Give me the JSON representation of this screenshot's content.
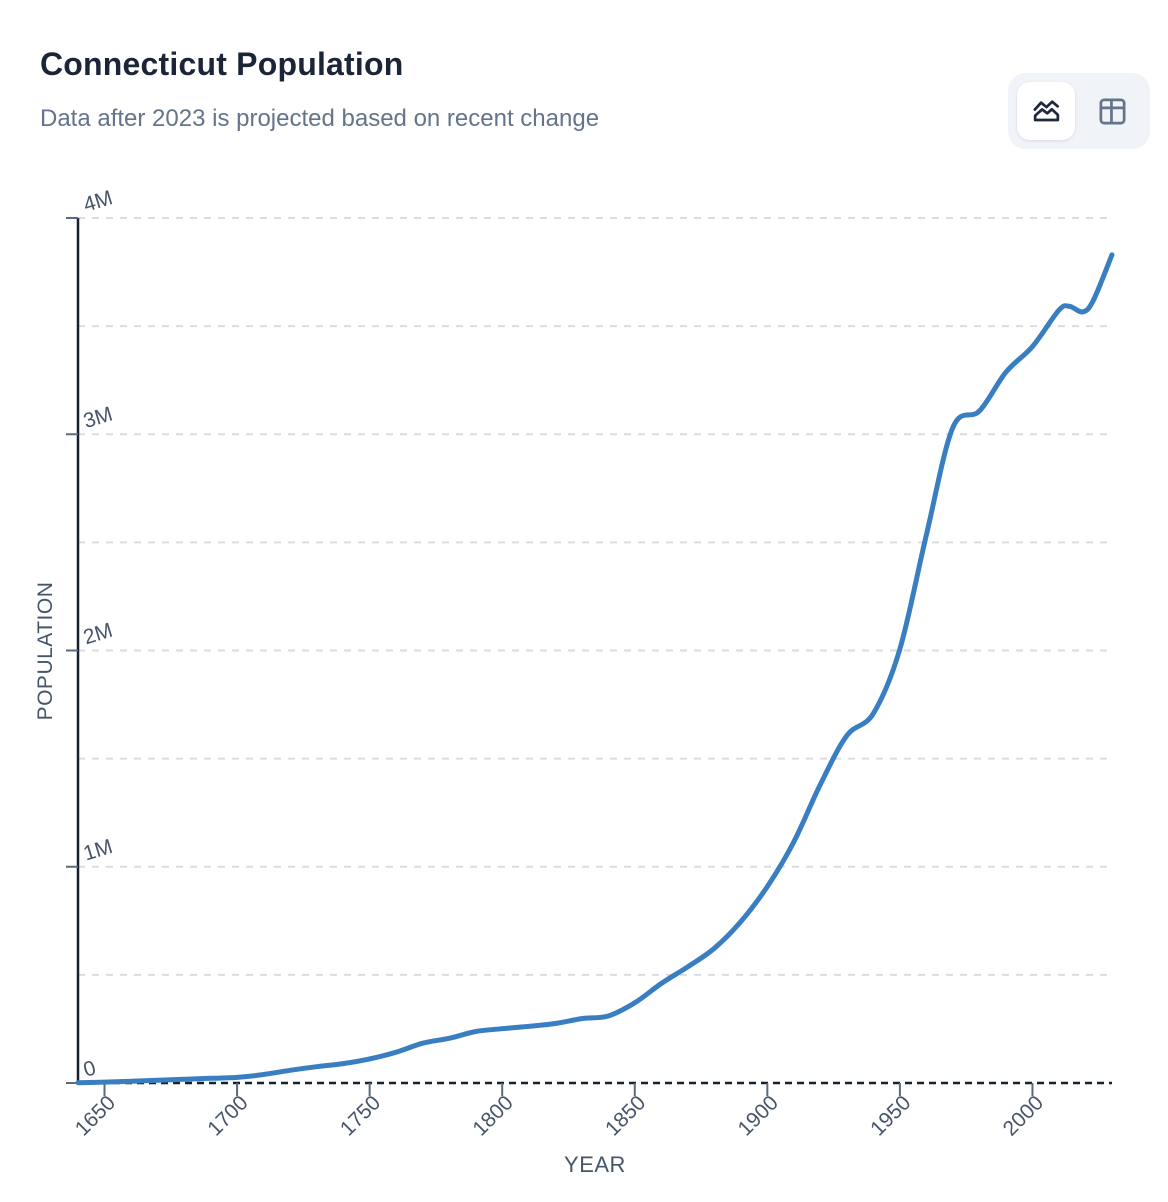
{
  "header": {
    "title": "Connecticut Population",
    "subtitle": "Data after 2023 is projected based on recent change",
    "view_toggle": {
      "options": [
        {
          "name": "chart-view",
          "icon": "area-chart-icon",
          "active": true
        },
        {
          "name": "table-view",
          "icon": "table-icon",
          "active": false
        }
      ]
    }
  },
  "colors": {
    "title_text": "#1b2537",
    "subtitle_text": "#64748b",
    "tick_label": "#475569",
    "axis_title": "#475569",
    "axis_line": "#16202e",
    "tick_mark": "#5b6a7e",
    "gridline": "#d9dde2",
    "series_line": "#3a7ec2",
    "toggle_bg": "#f0f3f7",
    "toggle_active_bg": "#ffffff",
    "icon_active": "#1e293b",
    "icon_inactive": "#64748b"
  },
  "chart_data": {
    "type": "line",
    "title": "Connecticut Population",
    "xlabel": "YEAR",
    "ylabel": "POPULATION",
    "xlim": [
      1640,
      2030
    ],
    "ylim": [
      0,
      4000000
    ],
    "grid": "horizontal-dashed",
    "gridline_values": [
      500000,
      1000000,
      1500000,
      2000000,
      2500000,
      3000000,
      3500000,
      4000000
    ],
    "x_ticks": [
      {
        "value": 1650,
        "label": "1650"
      },
      {
        "value": 1700,
        "label": "1700"
      },
      {
        "value": 1750,
        "label": "1750"
      },
      {
        "value": 1800,
        "label": "1800"
      },
      {
        "value": 1850,
        "label": "1850"
      },
      {
        "value": 1900,
        "label": "1900"
      },
      {
        "value": 1950,
        "label": "1950"
      },
      {
        "value": 2000,
        "label": "2000"
      }
    ],
    "y_ticks": [
      {
        "value": 0,
        "label": "0"
      },
      {
        "value": 1000000,
        "label": "1M"
      },
      {
        "value": 2000000,
        "label": "2M"
      },
      {
        "value": 3000000,
        "label": "3M"
      },
      {
        "value": 4000000,
        "label": "4M"
      }
    ],
    "legend": "none",
    "note": "Data after 2023 is projected based on recent change",
    "series": [
      {
        "name": "Connecticut population",
        "color": "#3a7ec2",
        "points": [
          [
            1640,
            1500
          ],
          [
            1650,
            4139
          ],
          [
            1660,
            7980
          ],
          [
            1670,
            12603
          ],
          [
            1680,
            17246
          ],
          [
            1690,
            21645
          ],
          [
            1700,
            25970
          ],
          [
            1710,
            39450
          ],
          [
            1720,
            58830
          ],
          [
            1730,
            75530
          ],
          [
            1740,
            89580
          ],
          [
            1750,
            111280
          ],
          [
            1760,
            142470
          ],
          [
            1770,
            183881
          ],
          [
            1780,
            206701
          ],
          [
            1790,
            237946
          ],
          [
            1800,
            251002
          ],
          [
            1810,
            261942
          ],
          [
            1820,
            275248
          ],
          [
            1830,
            297675
          ],
          [
            1840,
            309978
          ],
          [
            1850,
            370792
          ],
          [
            1860,
            460147
          ],
          [
            1870,
            537454
          ],
          [
            1880,
            622700
          ],
          [
            1890,
            746258
          ],
          [
            1900,
            908420
          ],
          [
            1910,
            1114756
          ],
          [
            1920,
            1380631
          ],
          [
            1930,
            1606903
          ],
          [
            1940,
            1709242
          ],
          [
            1950,
            2007280
          ],
          [
            1960,
            2535234
          ],
          [
            1970,
            3031709
          ],
          [
            1980,
            3107576
          ],
          [
            1990,
            3287116
          ],
          [
            2000,
            3405565
          ],
          [
            2010,
            3574097
          ],
          [
            2014,
            3591000
          ],
          [
            2019,
            3566000
          ],
          [
            2023,
            3620000
          ],
          [
            2030,
            3830000
          ]
        ]
      }
    ]
  }
}
